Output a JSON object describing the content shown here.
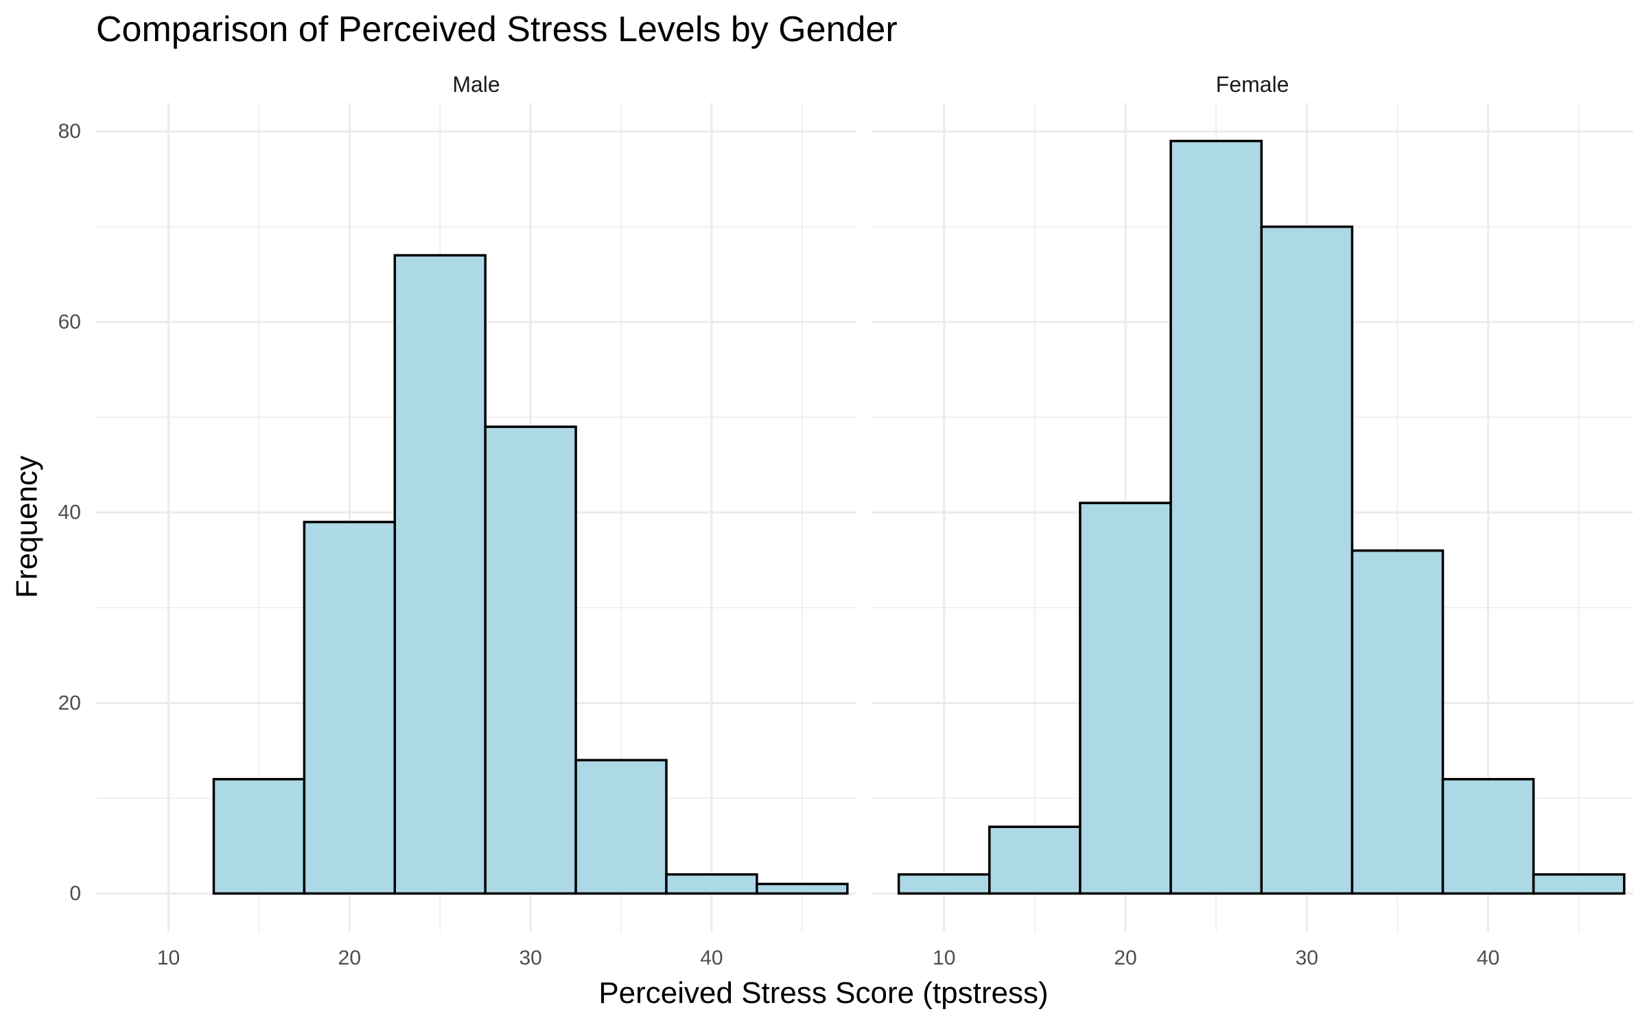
{
  "chart_data": {
    "type": "bar",
    "title": "Comparison of Perceived Stress Levels by Gender",
    "xlabel": "Perceived Stress Score (tpstress)",
    "ylabel": "Frequency",
    "bin_centers": [
      10,
      15,
      20,
      25,
      30,
      35,
      40,
      45
    ],
    "bin_width": 5,
    "x_ticks": [
      10,
      20,
      30,
      40
    ],
    "y_ticks": [
      0,
      20,
      40,
      60,
      80
    ],
    "xlim": [
      6,
      48
    ],
    "ylim": [
      -4,
      83
    ],
    "grid": true,
    "bar_fill": "#add8e6",
    "bar_stroke": "#000000",
    "grid_color": "#ebebeb",
    "panels": [
      {
        "name": "Male",
        "values": [
          0,
          12,
          39,
          67,
          49,
          14,
          2,
          1
        ]
      },
      {
        "name": "Female",
        "values": [
          2,
          7,
          41,
          79,
          70,
          36,
          12,
          2
        ]
      }
    ]
  }
}
